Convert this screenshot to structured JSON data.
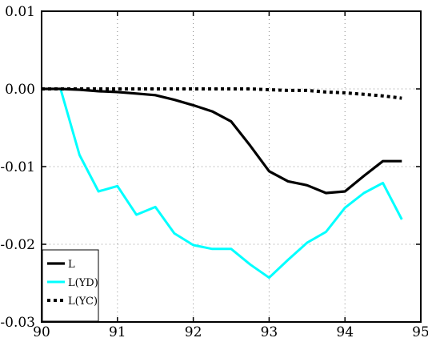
{
  "chart_data": {
    "type": "line",
    "title": "",
    "xlabel": "",
    "ylabel": "",
    "xlim": [
      90,
      95
    ],
    "ylim": [
      -0.03,
      0.01
    ],
    "x_ticks": [
      90,
      91,
      92,
      93,
      94,
      95
    ],
    "x_tick_labels": [
      "90",
      "91",
      "92",
      "93",
      "94",
      "95"
    ],
    "y_ticks": [
      0.01,
      0.0,
      -0.01,
      -0.02,
      -0.03
    ],
    "y_tick_labels": [
      "0.01",
      "0.00",
      "-0.01",
      "-0.02",
      "-0.03"
    ],
    "grid": true,
    "legend_position": "bottom-left",
    "x": [
      90.0,
      90.25,
      90.5,
      90.75,
      91.0,
      91.25,
      91.5,
      91.75,
      92.0,
      92.25,
      92.5,
      92.75,
      93.0,
      93.25,
      93.5,
      93.75,
      94.0,
      94.25,
      94.5,
      94.75
    ],
    "series": [
      {
        "name": "L",
        "color": "#000000",
        "style": "solid",
        "values": [
          0.0,
          0.0,
          -0.0001,
          -0.0003,
          -0.0004,
          -0.0006,
          -0.0008,
          -0.0014,
          -0.0021,
          -0.0029,
          -0.0042,
          -0.0073,
          -0.0106,
          -0.0119,
          -0.0124,
          -0.0134,
          -0.0132,
          -0.0112,
          -0.0093,
          -0.0093
        ]
      },
      {
        "name": "L(YD)",
        "color": "#00ffff",
        "style": "solid",
        "values": [
          0.0,
          0.0,
          -0.0085,
          -0.0132,
          -0.0125,
          -0.0162,
          -0.0152,
          -0.0186,
          -0.0201,
          -0.0206,
          -0.0206,
          -0.0226,
          -0.0243,
          -0.022,
          -0.0198,
          -0.0184,
          -0.0153,
          -0.0134,
          -0.0121,
          -0.0168
        ]
      },
      {
        "name": "L(YC)",
        "color": "#000000",
        "style": "dotted",
        "values": [
          0.0,
          0.0,
          0.0,
          0.0,
          0.0,
          0.0,
          0.0,
          0.0,
          0.0,
          0.0,
          0.0,
          0.0,
          -0.0001,
          -0.0002,
          -0.0002,
          -0.0004,
          -0.0005,
          -0.0007,
          -0.0009,
          -0.0012
        ]
      }
    ]
  }
}
